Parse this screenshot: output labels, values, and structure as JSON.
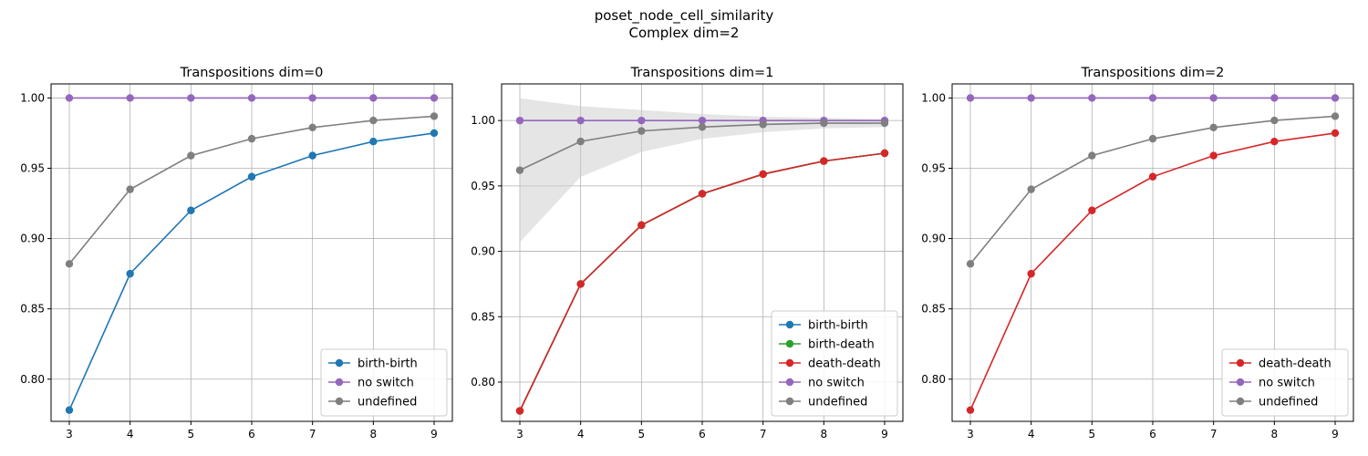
{
  "figure": {
    "title_line1": "poset_node_cell_similarity",
    "title_line2": "Complex dim=2"
  },
  "colors": {
    "birth-birth": "#1f77b4",
    "birth-death": "#2ca02c",
    "death-death": "#d62728",
    "no switch": "#9467bd",
    "undefined": "#7f7f7f",
    "band": "#cccccc"
  },
  "chart_data": [
    {
      "type": "line",
      "title": "Transpositions dim=0",
      "x": [
        3,
        4,
        5,
        6,
        7,
        8,
        9
      ],
      "xticks": [
        "3",
        "4",
        "5",
        "6",
        "7",
        "8",
        "9"
      ],
      "ylim": [
        0.77,
        1.01
      ],
      "yticks": [
        0.8,
        0.85,
        0.9,
        0.95,
        1.0
      ],
      "ytick_labels": [
        "0.80",
        "0.85",
        "0.90",
        "0.95",
        "1.00"
      ],
      "grid": true,
      "legend_position": "lower-right",
      "series": [
        {
          "name": "birth-birth",
          "values": [
            0.778,
            0.875,
            0.92,
            0.944,
            0.959,
            0.969,
            0.975
          ]
        },
        {
          "name": "no switch",
          "values": [
            1.0,
            1.0,
            1.0,
            1.0,
            1.0,
            1.0,
            1.0
          ]
        },
        {
          "name": "undefined",
          "values": [
            0.882,
            0.935,
            0.959,
            0.971,
            0.979,
            0.984,
            0.987
          ]
        }
      ]
    },
    {
      "type": "line",
      "title": "Transpositions dim=1",
      "x": [
        3,
        4,
        5,
        6,
        7,
        8,
        9
      ],
      "xticks": [
        "3",
        "4",
        "5",
        "6",
        "7",
        "8",
        "9"
      ],
      "ylim": [
        0.77,
        1.028
      ],
      "yticks": [
        0.8,
        0.85,
        0.9,
        0.95,
        1.0
      ],
      "ytick_labels": [
        "0.80",
        "0.85",
        "0.90",
        "0.95",
        "1.00"
      ],
      "grid": true,
      "legend_position": "lower-right",
      "series": [
        {
          "name": "birth-birth",
          "values": [
            0.778,
            0.875,
            0.92,
            0.944,
            0.959,
            0.969,
            0.975
          ]
        },
        {
          "name": "birth-death",
          "values": [
            0.778,
            0.875,
            0.92,
            0.944,
            0.959,
            0.969,
            0.975
          ]
        },
        {
          "name": "death-death",
          "values": [
            0.778,
            0.875,
            0.92,
            0.944,
            0.959,
            0.969,
            0.975
          ]
        },
        {
          "name": "no switch",
          "values": [
            1.0,
            1.0,
            1.0,
            1.0,
            1.0,
            1.0,
            1.0
          ]
        },
        {
          "name": "undefined",
          "values": [
            0.962,
            0.984,
            0.992,
            0.995,
            0.997,
            0.998,
            0.998
          ],
          "band_low": [
            0.907,
            0.957,
            0.976,
            0.986,
            0.991,
            0.994,
            0.995
          ],
          "band_high": [
            1.017,
            1.011,
            1.008,
            1.005,
            1.003,
            1.002,
            1.001
          ]
        }
      ]
    },
    {
      "type": "line",
      "title": "Transpositions dim=2",
      "x": [
        3,
        4,
        5,
        6,
        7,
        8,
        9
      ],
      "xticks": [
        "3",
        "4",
        "5",
        "6",
        "7",
        "8",
        "9"
      ],
      "ylim": [
        0.77,
        1.01
      ],
      "yticks": [
        0.8,
        0.85,
        0.9,
        0.95,
        1.0
      ],
      "ytick_labels": [
        "0.80",
        "0.85",
        "0.90",
        "0.95",
        "1.00"
      ],
      "grid": true,
      "legend_position": "lower-right",
      "series": [
        {
          "name": "death-death",
          "values": [
            0.778,
            0.875,
            0.92,
            0.944,
            0.959,
            0.969,
            0.975
          ]
        },
        {
          "name": "no switch",
          "values": [
            1.0,
            1.0,
            1.0,
            1.0,
            1.0,
            1.0,
            1.0
          ]
        },
        {
          "name": "undefined",
          "values": [
            0.882,
            0.935,
            0.959,
            0.971,
            0.979,
            0.984,
            0.987
          ]
        }
      ]
    }
  ]
}
